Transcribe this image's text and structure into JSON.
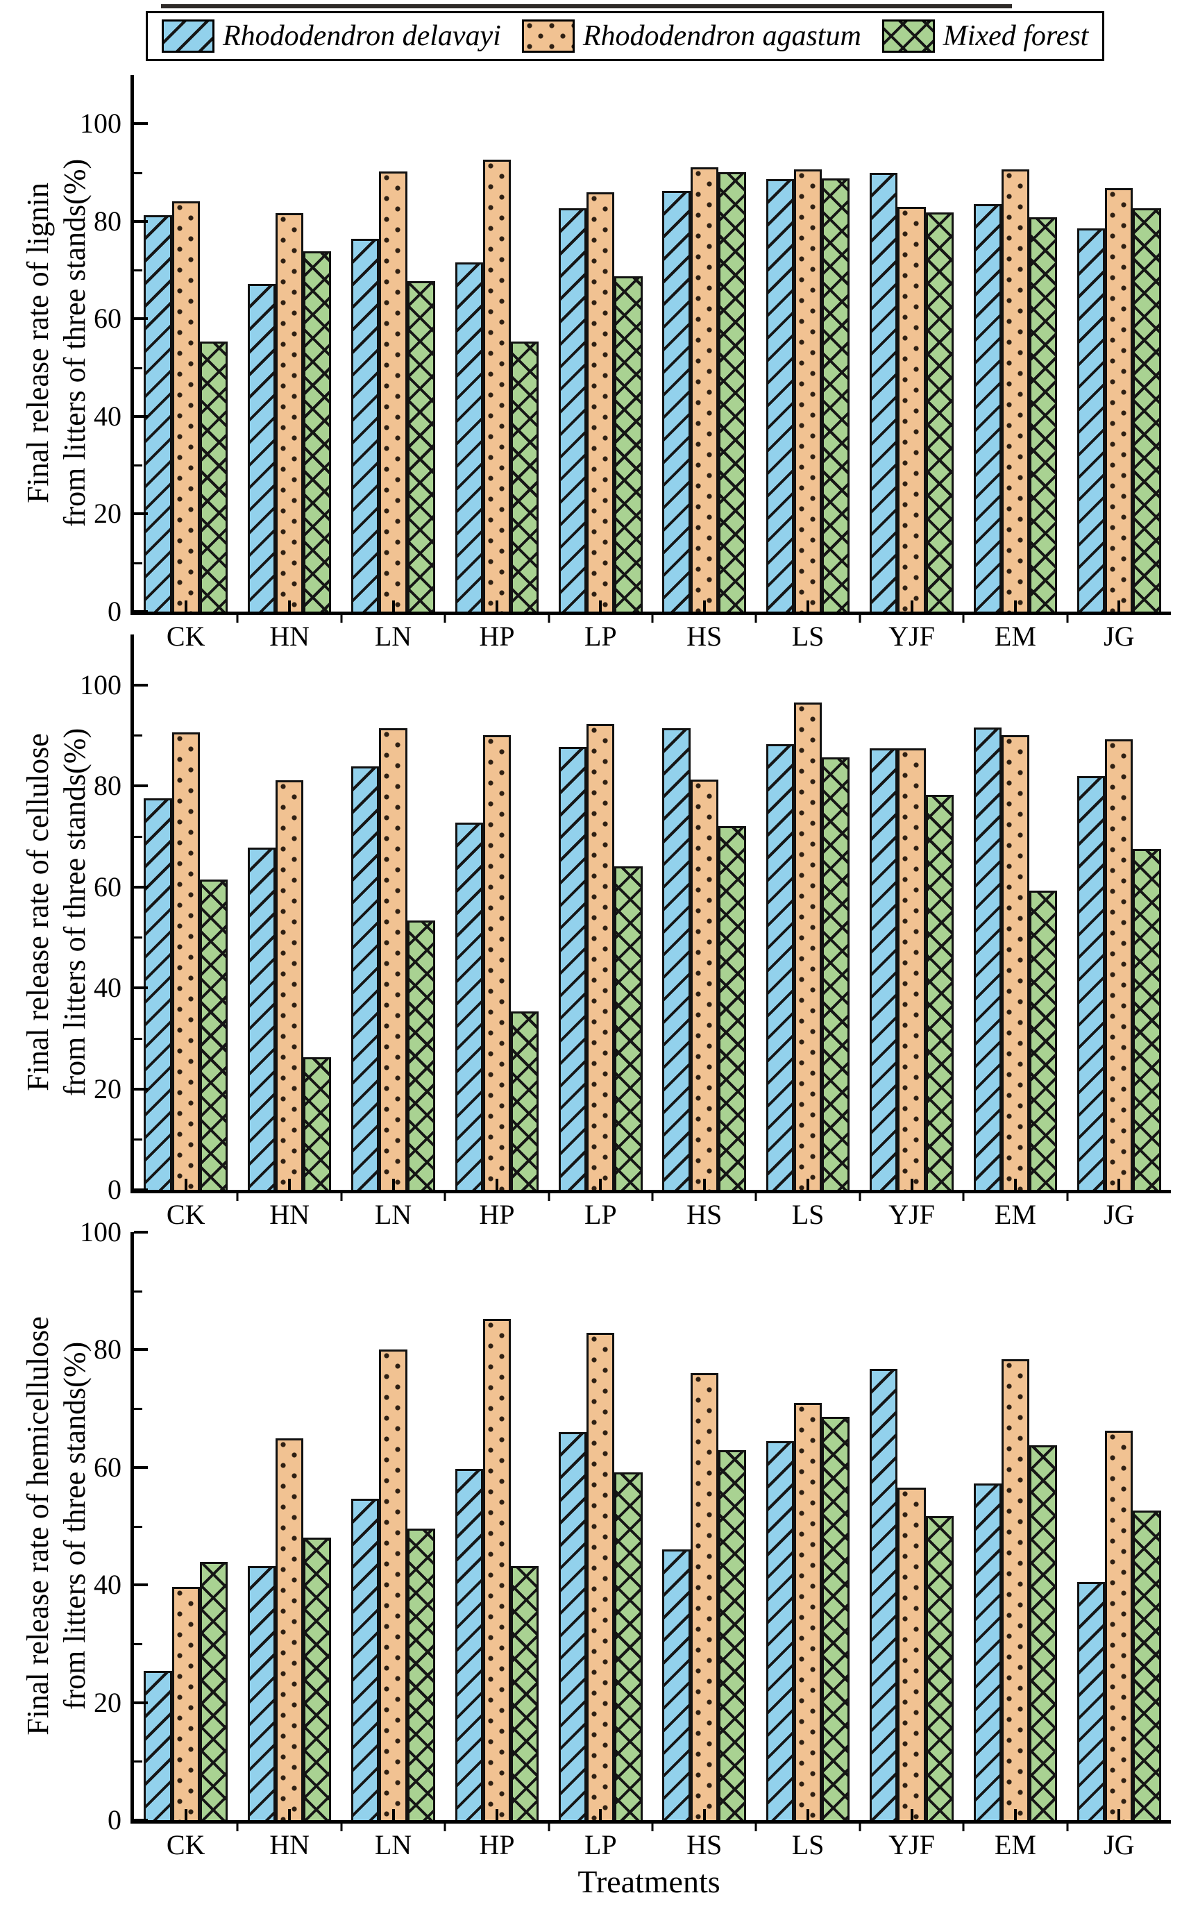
{
  "legend": {
    "items": [
      {
        "label": "Rhododendron delavayi",
        "swatch": "blue-diagonal-hatch"
      },
      {
        "label": "Rhododendron agastum",
        "swatch": "orange-dots"
      },
      {
        "label": "Mixed forest",
        "swatch": "green-crosshatch"
      }
    ]
  },
  "xlabel": "Treatments",
  "categories": [
    "CK",
    "HN",
    "LN",
    "HP",
    "LP",
    "HS",
    "LS",
    "YJF",
    "EM",
    "JG"
  ],
  "colors": {
    "delavayi_fill": "#92d1ec",
    "agastum_fill": "#f1c292",
    "mixed_fill": "#a9d292",
    "bar_edge": "#121212",
    "axis": "#000000"
  },
  "chart_data": [
    {
      "type": "bar",
      "ylabel_line1": "Final release rate of lignin",
      "ylabel_line2": "from litters of three stands(%)",
      "categories": [
        "CK",
        "HN",
        "LN",
        "HP",
        "LP",
        "HS",
        "LS",
        "YJF",
        "EM",
        "JG"
      ],
      "series": [
        {
          "name": "Rhododendron delavayi",
          "values": [
            81.2,
            67.2,
            76.4,
            71.6,
            82.7,
            86.3,
            88.6,
            90.0,
            83.6,
            78.6
          ]
        },
        {
          "name": "Rhododendron agastum",
          "values": [
            84.1,
            81.7,
            90.2,
            92.7,
            86.0,
            91.1,
            90.6,
            83.0,
            90.6,
            86.8
          ]
        },
        {
          "name": "Mixed forest",
          "values": [
            55.3,
            73.8,
            67.7,
            55.3,
            68.8,
            90.1,
            88.8,
            81.8,
            80.9,
            82.7
          ]
        }
      ],
      "ylim": [
        0,
        100
      ],
      "ytick_major": 20,
      "ytick_minor": 10,
      "grid": false,
      "legend_position": "top"
    },
    {
      "type": "bar",
      "ylabel_line1": "Final release rate of cellulose",
      "ylabel_line2": "from litters of three stands(%)",
      "categories": [
        "CK",
        "HN",
        "LN",
        "HP",
        "LP",
        "HS",
        "LS",
        "YJF",
        "EM",
        "JG"
      ],
      "series": [
        {
          "name": "Rhododendron delavayi",
          "values": [
            77.6,
            67.8,
            83.9,
            72.7,
            87.7,
            91.4,
            88.3,
            87.4,
            91.6,
            82.0
          ]
        },
        {
          "name": "Rhododendron agastum",
          "values": [
            90.6,
            81.1,
            91.4,
            90.0,
            92.3,
            81.3,
            96.5,
            87.4,
            90.1,
            89.2
          ]
        },
        {
          "name": "Mixed forest",
          "values": [
            61.4,
            26.2,
            53.3,
            35.4,
            64.1,
            72.1,
            85.7,
            78.3,
            59.2,
            67.5
          ]
        }
      ],
      "ylim": [
        0,
        100
      ],
      "ytick_major": 20,
      "ytick_minor": 10,
      "grid": false,
      "legend_position": "none"
    },
    {
      "type": "bar",
      "ylabel_line1": "Final release rate of hemicellulose",
      "ylabel_line2": "from litters of three stands(%)",
      "categories": [
        "CK",
        "HN",
        "LN",
        "HP",
        "LP",
        "HS",
        "LS",
        "YJF",
        "EM",
        "JG"
      ],
      "series": [
        {
          "name": "Rhododendron delavayi",
          "values": [
            25.4,
            43.2,
            54.7,
            59.8,
            66.0,
            46.0,
            64.5,
            76.8,
            57.3,
            40.5
          ]
        },
        {
          "name": "Rhododendron agastum",
          "values": [
            39.7,
            64.9,
            80.1,
            85.2,
            82.9,
            76.0,
            71.0,
            56.5,
            78.4,
            66.2
          ]
        },
        {
          "name": "Mixed forest",
          "values": [
            43.9,
            48.0,
            49.6,
            43.2,
            59.1,
            62.9,
            68.6,
            51.7,
            63.8,
            52.7
          ]
        }
      ],
      "ylim": [
        0,
        100
      ],
      "ytick_major": 20,
      "ytick_minor": 10,
      "grid": false,
      "legend_position": "none"
    }
  ]
}
